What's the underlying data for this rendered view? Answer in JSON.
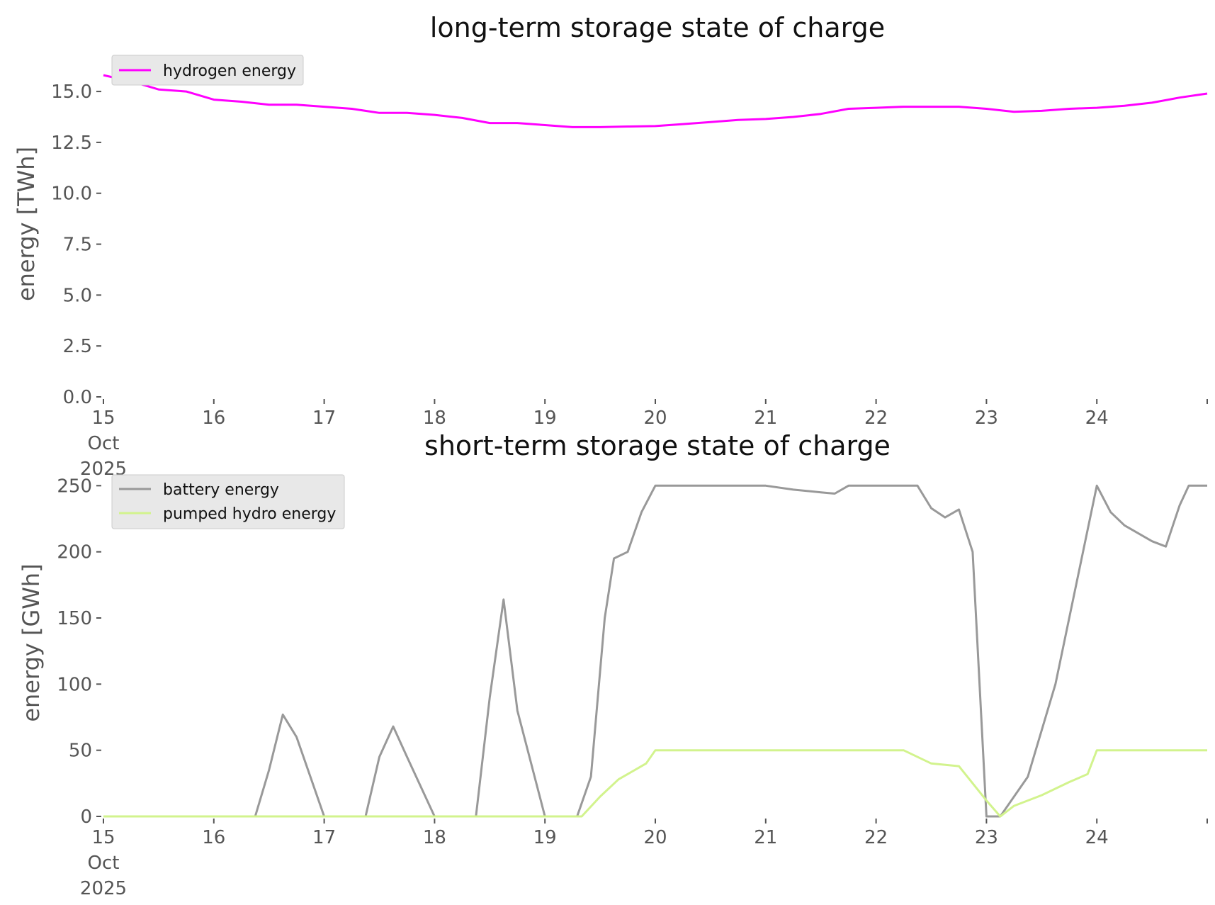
{
  "chart_data": [
    {
      "type": "line",
      "title": "long-term storage state of charge",
      "xlabel": "",
      "ylabel": "energy [TWh]",
      "xlim": [
        "2025-10-15",
        "2025-10-25"
      ],
      "ylim": [
        0,
        16.5
      ],
      "y_ticks": [
        "0.0",
        "2.5",
        "5.0",
        "7.5",
        "10.0",
        "12.5",
        "15.0"
      ],
      "y_tick_values": [
        0,
        2.5,
        5,
        7.5,
        10,
        12.5,
        15
      ],
      "x_ticks": [
        "15\nOct\n2025",
        "16",
        "17",
        "18",
        "19",
        "20",
        "21",
        "22",
        "23",
        "24"
      ],
      "grid": false,
      "legend": "top-left",
      "series": [
        {
          "name": "hydrogen energy",
          "color": "#ff00ff",
          "x": [
            "2025-10-15 00:00",
            "2025-10-15 06:00",
            "2025-10-15 12:00",
            "2025-10-15 18:00",
            "2025-10-16 00:00",
            "2025-10-16 06:00",
            "2025-10-16 12:00",
            "2025-10-16 18:00",
            "2025-10-17 00:00",
            "2025-10-17 06:00",
            "2025-10-17 12:00",
            "2025-10-17 18:00",
            "2025-10-18 00:00",
            "2025-10-18 06:00",
            "2025-10-18 12:00",
            "2025-10-18 18:00",
            "2025-10-19 00:00",
            "2025-10-19 06:00",
            "2025-10-19 12:00",
            "2025-10-19 18:00",
            "2025-10-20 00:00",
            "2025-10-20 06:00",
            "2025-10-20 12:00",
            "2025-10-20 18:00",
            "2025-10-21 00:00",
            "2025-10-21 06:00",
            "2025-10-21 12:00",
            "2025-10-21 18:00",
            "2025-10-22 00:00",
            "2025-10-22 06:00",
            "2025-10-22 12:00",
            "2025-10-22 18:00",
            "2025-10-23 00:00",
            "2025-10-23 06:00",
            "2025-10-23 12:00",
            "2025-10-23 18:00",
            "2025-10-24 00:00",
            "2025-10-24 06:00",
            "2025-10-24 12:00",
            "2025-10-24 18:00",
            "2025-10-25 00:00"
          ],
          "y": [
            15.8,
            15.5,
            15.1,
            15.0,
            14.6,
            14.5,
            14.35,
            14.35,
            14.25,
            14.15,
            13.95,
            13.95,
            13.85,
            13.7,
            13.45,
            13.45,
            13.35,
            13.25,
            13.25,
            13.28,
            13.3,
            13.4,
            13.5,
            13.6,
            13.65,
            13.75,
            13.9,
            14.15,
            14.2,
            14.25,
            14.25,
            14.25,
            14.15,
            14.0,
            14.05,
            14.15,
            14.2,
            14.3,
            14.45,
            14.7,
            14.9
          ]
        }
      ]
    },
    {
      "type": "line",
      "title": "short-term storage state of charge",
      "xlabel": "",
      "ylabel": "energy [GWh]",
      "xlim": [
        "2025-10-15",
        "2025-10-25"
      ],
      "ylim": [
        0,
        255
      ],
      "y_ticks": [
        "0",
        "50",
        "100",
        "150",
        "200",
        "250"
      ],
      "y_tick_values": [
        0,
        50,
        100,
        150,
        200,
        250
      ],
      "x_ticks": [
        "15\nOct\n2025",
        "16",
        "17",
        "18",
        "19",
        "20",
        "21",
        "22",
        "23",
        "24"
      ],
      "grid": false,
      "legend": "top-left",
      "series": [
        {
          "name": "battery energy",
          "color": "#999999",
          "x": [
            "2025-10-15 00:00",
            "2025-10-16 09:00",
            "2025-10-16 12:00",
            "2025-10-16 15:00",
            "2025-10-16 18:00",
            "2025-10-17 00:00",
            "2025-10-17 09:00",
            "2025-10-17 12:00",
            "2025-10-17 15:00",
            "2025-10-17 18:00",
            "2025-10-18 00:00",
            "2025-10-18 09:00",
            "2025-10-18 12:00",
            "2025-10-18 15:00",
            "2025-10-18 18:00",
            "2025-10-19 00:00",
            "2025-10-19 07:00",
            "2025-10-19 10:00",
            "2025-10-19 13:00",
            "2025-10-19 15:00",
            "2025-10-19 18:00",
            "2025-10-19 21:00",
            "2025-10-20 00:00",
            "2025-10-21 00:00",
            "2025-10-21 06:00",
            "2025-10-21 12:00",
            "2025-10-21 15:00",
            "2025-10-21 18:00",
            "2025-10-22 00:00",
            "2025-10-22 06:00",
            "2025-10-22 09:00",
            "2025-10-22 12:00",
            "2025-10-22 15:00",
            "2025-10-22 18:00",
            "2025-10-22 21:00",
            "2025-10-23 00:00",
            "2025-10-23 03:00",
            "2025-10-23 09:00",
            "2025-10-23 15:00",
            "2025-10-23 21:00",
            "2025-10-24 00:00",
            "2025-10-24 03:00",
            "2025-10-24 06:00",
            "2025-10-24 12:00",
            "2025-10-24 15:00",
            "2025-10-24 18:00",
            "2025-10-24 20:00",
            "2025-10-25 00:00"
          ],
          "y": [
            0,
            0,
            35,
            77,
            60,
            0,
            0,
            45,
            68,
            45,
            0,
            0,
            90,
            164,
            80,
            0,
            0,
            30,
            150,
            195,
            200,
            230,
            250,
            250,
            247,
            245,
            244,
            250,
            250,
            250,
            250,
            233,
            226,
            232,
            200,
            0,
            0,
            30,
            100,
            200,
            250,
            230,
            220,
            208,
            204,
            235,
            250,
            250
          ]
        },
        {
          "name": "pumped hydro energy",
          "color": "#d2f38d",
          "x": [
            "2025-10-15 00:00",
            "2025-10-19 08:00",
            "2025-10-19 12:00",
            "2025-10-19 16:00",
            "2025-10-19 20:00",
            "2025-10-19 22:00",
            "2025-10-20 00:00",
            "2025-10-22 06:00",
            "2025-10-22 12:00",
            "2025-10-22 18:00",
            "2025-10-23 00:00",
            "2025-10-23 03:00",
            "2025-10-23 06:00",
            "2025-10-23 12:00",
            "2025-10-23 18:00",
            "2025-10-23 22:00",
            "2025-10-24 00:00",
            "2025-10-25 00:00"
          ],
          "y": [
            0,
            0,
            15,
            28,
            36,
            40,
            50,
            50,
            40,
            38,
            12,
            0,
            8,
            16,
            26,
            32,
            50,
            50
          ]
        }
      ]
    }
  ]
}
